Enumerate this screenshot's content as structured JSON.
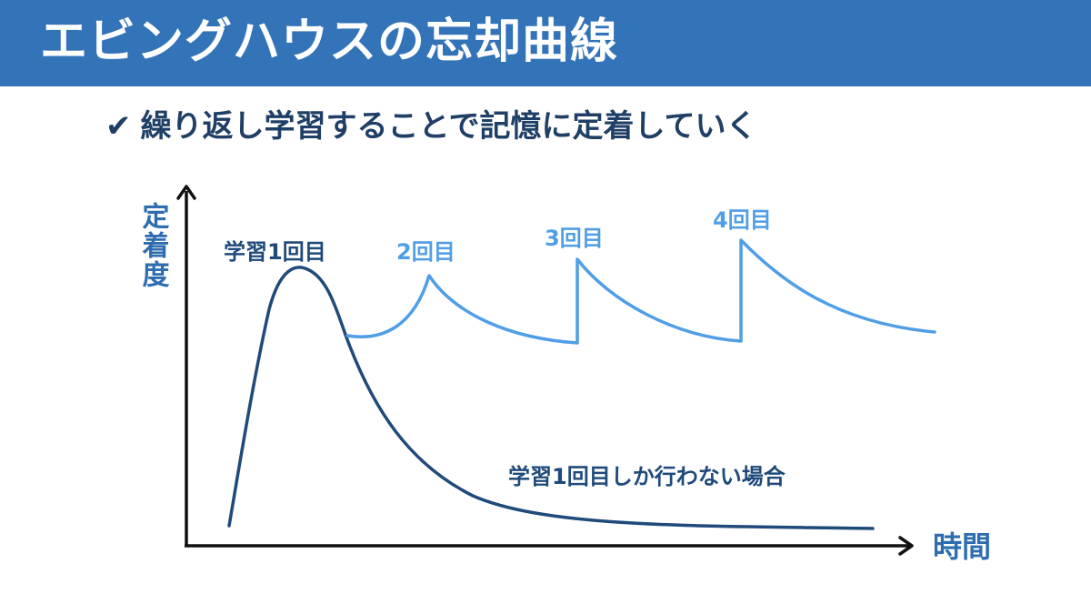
{
  "header": {
    "title": "エビングハウスの忘却曲線"
  },
  "subtitle": {
    "check_icon": "checkmark-icon",
    "check_glyph": "✔",
    "text": "繰り返し学習することで記憶に定着していく"
  },
  "diagram": {
    "y_axis_label": "定着度",
    "x_axis_label": "時間",
    "curve_labels": {
      "first_learning": "学習1回目",
      "second": "2回目",
      "third": "3回目",
      "fourth": "4回目",
      "only_once": "学習1回目しか行わない場合"
    }
  },
  "colors": {
    "header_bg": "#3373b8",
    "dark_curve": "#1f4a7a",
    "light_curve": "#4f9ee6",
    "axis": "#111111",
    "dark_text": "#1f3f66",
    "y_label": "#2e6db0"
  }
}
